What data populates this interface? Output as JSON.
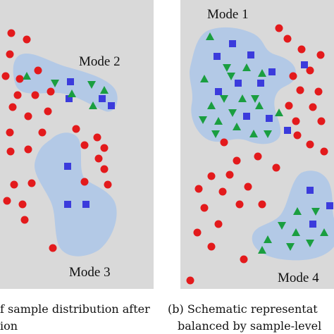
{
  "left_panel": {
    "mode_labels": [
      "Mode 2",
      "Mode 3"
    ],
    "caption": [
      "f sample distribution after",
      "ion"
    ]
  },
  "right_panel": {
    "mode_labels": [
      "Mode 1",
      "Mode 4"
    ],
    "caption": [
      "(b) Schematic representat",
      "balanced by sample-level"
    ]
  }
}
